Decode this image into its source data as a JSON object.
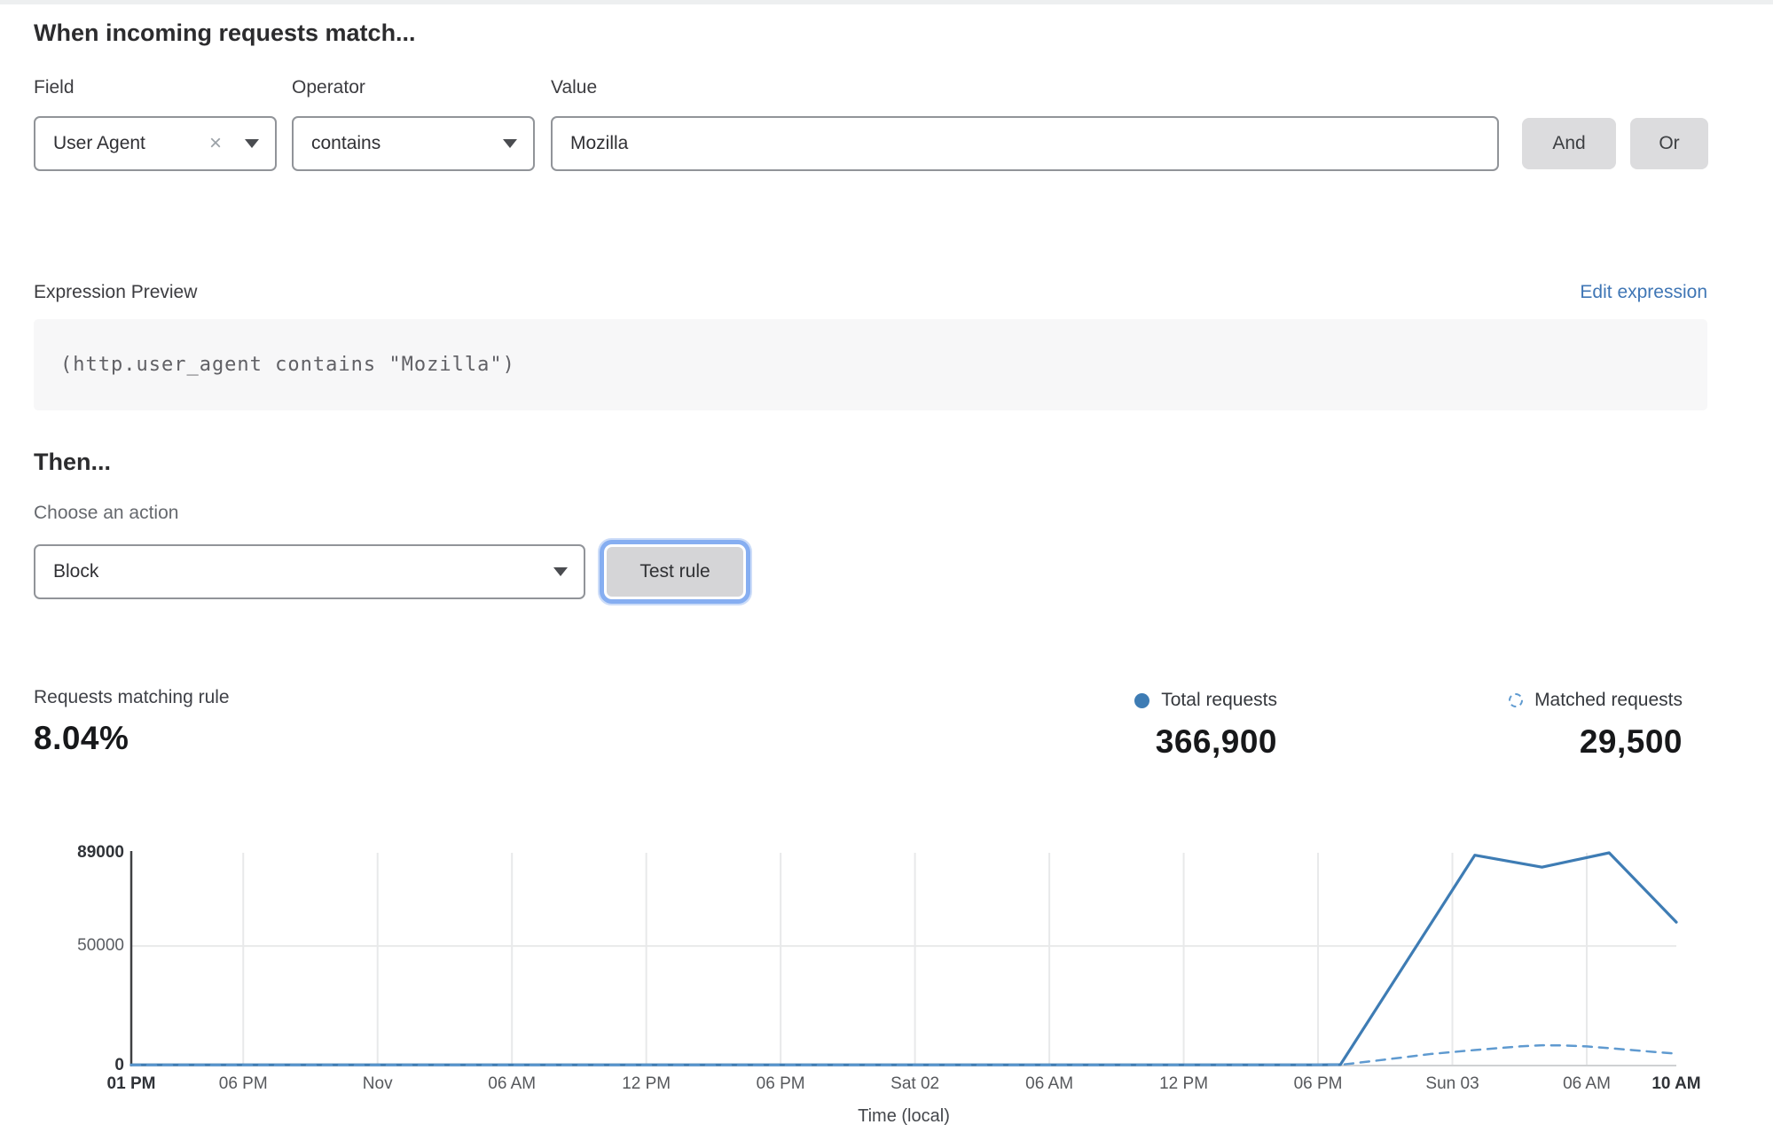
{
  "rule_builder": {
    "heading": "When incoming requests match...",
    "field": {
      "label": "Field",
      "value": "User Agent"
    },
    "operator": {
      "label": "Operator",
      "value": "contains"
    },
    "value": {
      "label": "Value",
      "value": "Mozilla"
    },
    "and_label": "And",
    "or_label": "Or"
  },
  "expression": {
    "label": "Expression Preview",
    "edit_link": "Edit expression",
    "code": "(http.user_agent contains \"Mozilla\")"
  },
  "action": {
    "heading": "Then...",
    "label": "Choose an action",
    "value": "Block",
    "test_button": "Test rule"
  },
  "stats": {
    "match_label": "Requests matching rule",
    "match_value": "8.04%",
    "total": {
      "label": "Total requests",
      "value": "366,900"
    },
    "matched": {
      "label": "Matched requests",
      "value": "29,500"
    }
  },
  "colors": {
    "solid_line": "#3e7cb4",
    "dashed_line": "#5f9ad0",
    "link_blue": "#3f76b5",
    "gridline": "#e8e9ea",
    "y_axis": "#3f4043",
    "x_axis_baseline": "#cfd1d3"
  },
  "chart_data": {
    "type": "line",
    "xlabel": "Time (local)",
    "x_unit": "hours_from_start",
    "xlim": [
      0,
      69
    ],
    "ylim": [
      0,
      89000
    ],
    "grid": "vertical-per-tick, horizontal-at-50000",
    "legend_position": "top-right",
    "y_ticks": [
      {
        "v": 0,
        "label": "0",
        "bold": true
      },
      {
        "v": 50000,
        "label": "50000",
        "bold": false
      },
      {
        "v": 89000,
        "label": "89000",
        "bold": true
      }
    ],
    "x_ticks": [
      {
        "h": 0,
        "label": "01 PM",
        "bold": true
      },
      {
        "h": 5,
        "label": "06 PM",
        "bold": false
      },
      {
        "h": 11,
        "label": "Nov",
        "bold": false
      },
      {
        "h": 17,
        "label": "06 AM",
        "bold": false
      },
      {
        "h": 23,
        "label": "12 PM",
        "bold": false
      },
      {
        "h": 29,
        "label": "06 PM",
        "bold": false
      },
      {
        "h": 35,
        "label": "Sat 02",
        "bold": false
      },
      {
        "h": 41,
        "label": "06 AM",
        "bold": false
      },
      {
        "h": 47,
        "label": "12 PM",
        "bold": false
      },
      {
        "h": 53,
        "label": "06 PM",
        "bold": false
      },
      {
        "h": 59,
        "label": "Sun 03",
        "bold": false
      },
      {
        "h": 65,
        "label": "06 AM",
        "bold": false
      },
      {
        "h": 69,
        "label": "10 AM",
        "bold": true
      }
    ],
    "series": [
      {
        "name": "Total requests",
        "style": "solid",
        "points": [
          [
            0,
            300
          ],
          [
            5,
            300
          ],
          [
            11,
            300
          ],
          [
            17,
            300
          ],
          [
            23,
            300
          ],
          [
            29,
            300
          ],
          [
            35,
            300
          ],
          [
            41,
            300
          ],
          [
            47,
            300
          ],
          [
            53,
            300
          ],
          [
            54,
            400
          ],
          [
            60,
            88000
          ],
          [
            63,
            83000
          ],
          [
            66,
            89000
          ],
          [
            69,
            60000
          ]
        ]
      },
      {
        "name": "Matched requests",
        "style": "dashed",
        "points": [
          [
            0,
            150
          ],
          [
            10,
            150
          ],
          [
            20,
            150
          ],
          [
            30,
            150
          ],
          [
            40,
            150
          ],
          [
            50,
            180
          ],
          [
            54,
            300
          ],
          [
            56,
            2500
          ],
          [
            58,
            4800
          ],
          [
            60,
            6500
          ],
          [
            62,
            8000
          ],
          [
            63,
            8500
          ],
          [
            64,
            8400
          ],
          [
            65,
            8000
          ],
          [
            66,
            7300
          ],
          [
            67,
            6500
          ],
          [
            68,
            5700
          ],
          [
            69,
            5000
          ]
        ]
      }
    ]
  }
}
